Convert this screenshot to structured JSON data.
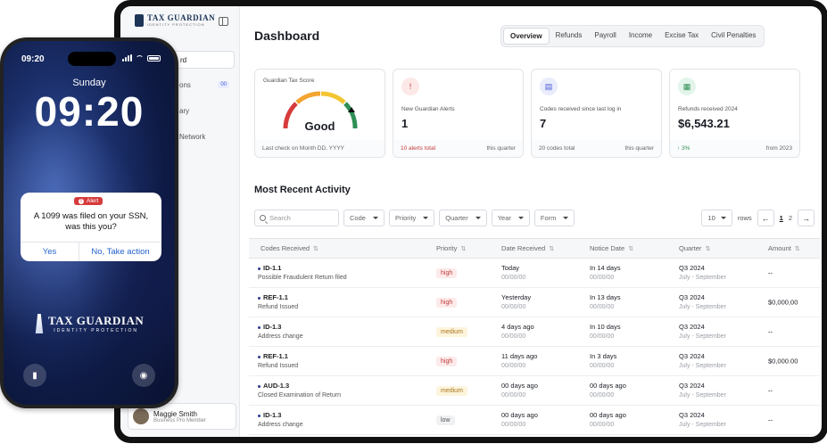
{
  "sidebar": {
    "brand_name": "TAX GUARDIAN",
    "brand_sub": "IDENTITY PROTECTION",
    "items": [
      {
        "label": "rd"
      },
      {
        "label": "ons",
        "badge": "00"
      },
      {
        "label": "ary"
      },
      {
        "label": "Network"
      }
    ],
    "user": {
      "name": "Maggie Smith",
      "role": "Business Pro Member"
    }
  },
  "header": {
    "title": "Dashboard",
    "tabs": [
      "Overview",
      "Refunds",
      "Payroll",
      "Income",
      "Excise Tax",
      "Civil Penalties"
    ]
  },
  "cards": [
    {
      "label": "Guardian Tax Score",
      "value": "Good",
      "foot_left": "Last check on Month DD, YYYY",
      "foot_right": ""
    },
    {
      "label": "New Guardian Alerts",
      "value": "1",
      "foot_left": "10 alerts total",
      "foot_right": "this quarter"
    },
    {
      "label": "Codes received since last log in",
      "value": "7",
      "foot_left": "20 codes total",
      "foot_right": "this quarter"
    },
    {
      "label": "Refunds received 2024",
      "value": "$6,543.21",
      "foot_left": "↑ 3%",
      "foot_right": "from 2023"
    }
  ],
  "activity": {
    "title": "Most Recent Activity",
    "search_placeholder": "Search",
    "filters": [
      "Code",
      "Priority",
      "Quarter",
      "Year",
      "Form"
    ],
    "rows_per_page": "10",
    "rows_label": "rows",
    "pages": [
      "1",
      "2"
    ],
    "columns": [
      "Codes Received",
      "Priority",
      "Date Received",
      "Notice Date",
      "Quarter",
      "Amount"
    ],
    "rows": [
      {
        "code": "ID-1.1",
        "desc": "Possible Fraudulent Return filed",
        "priority": "high",
        "date": "Today",
        "date_sub": "00/00/00",
        "notice": "In 14 days",
        "notice_sub": "00/00/00",
        "quarter": "Q3 2024",
        "quarter_sub": "July - September",
        "amount": "--"
      },
      {
        "code": "REF-1.1",
        "desc": "Refund Issued",
        "priority": "high",
        "date": "Yesterday",
        "date_sub": "00/00/00",
        "notice": "In 13 days",
        "notice_sub": "00/00/00",
        "quarter": "Q3 2024",
        "quarter_sub": "July - September",
        "amount": "$0,000,00"
      },
      {
        "code": "ID-1.3",
        "desc": "Address change",
        "priority": "medium",
        "date": "4 days ago",
        "date_sub": "00/00/00",
        "notice": "In 10 days",
        "notice_sub": "00/00/00",
        "quarter": "Q3 2024",
        "quarter_sub": "July - September",
        "amount": "--"
      },
      {
        "code": "REF-1.1",
        "desc": "Refund Issued",
        "priority": "high",
        "date": "11 days ago",
        "date_sub": "00/00/00",
        "notice": "In 3 days",
        "notice_sub": "00/00/00",
        "quarter": "Q3 2024",
        "quarter_sub": "July - September",
        "amount": "$0,000.00"
      },
      {
        "code": "AUD-1.3",
        "desc": "Closed Examination of Return",
        "priority": "medium",
        "date": "00 days ago",
        "date_sub": "00/00/00",
        "notice": "00 days ago",
        "notice_sub": "00/00/00",
        "quarter": "Q3 2024",
        "quarter_sub": "July - September",
        "amount": "--"
      },
      {
        "code": "ID-1.3",
        "desc": "Address change",
        "priority": "low",
        "date": "00 days ago",
        "date_sub": "00/00/00",
        "notice": "00 days ago",
        "notice_sub": "00/00/00",
        "quarter": "Q3 2024",
        "quarter_sub": "July - September",
        "amount": "--"
      }
    ]
  },
  "phone": {
    "status_time": "09:20",
    "day": "Sunday",
    "clock": "09:20",
    "alert_badge": "Alert",
    "alert_message": "A 1099 was filed on your SSN, was this you?",
    "yes_label": "Yes",
    "action_label": "No, Take action",
    "logo_name": "TAX GUARDIAN",
    "logo_sub": "IDENTITY PROTECTION"
  },
  "colors": {
    "accent": "#2d3b8f",
    "alert_red": "#d63b3b",
    "positive_green": "#2f8f55",
    "action_blue": "#2563c9"
  }
}
